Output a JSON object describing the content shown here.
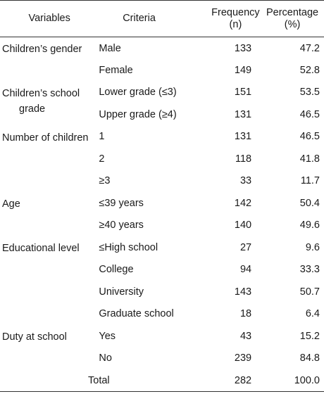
{
  "headers": {
    "variables": "Variables",
    "criteria": "Criteria",
    "frequency_line1": "Frequency",
    "frequency_line2": "(n)",
    "percentage_line1": "Percentage",
    "percentage_line2": "(%)"
  },
  "groups": [
    {
      "variable": "Children’s gender",
      "rows": [
        {
          "criteria": "Male",
          "n": "133",
          "pct": "47.2"
        },
        {
          "criteria": "Female",
          "n": "149",
          "pct": "52.8"
        }
      ]
    },
    {
      "variable_line1": "Children’s school",
      "variable_line2": "grade",
      "rows": [
        {
          "criteria": "Lower grade (≤3)",
          "n": "151",
          "pct": "53.5"
        },
        {
          "criteria": "Upper grade (≥4)",
          "n": "131",
          "pct": "46.5"
        }
      ]
    },
    {
      "variable": "Number of children",
      "rows": [
        {
          "criteria": "1",
          "n": "131",
          "pct": "46.5"
        },
        {
          "criteria": "2",
          "n": "118",
          "pct": "41.8"
        },
        {
          "criteria": "≥3",
          "n": "33",
          "pct": "11.7"
        }
      ]
    },
    {
      "variable": "Age",
      "rows": [
        {
          "criteria": "≤39 years",
          "n": "142",
          "pct": "50.4"
        },
        {
          "criteria": "≥40 years",
          "n": "140",
          "pct": "49.6"
        }
      ]
    },
    {
      "variable": "Educational level",
      "rows": [
        {
          "criteria": "≤High school",
          "n": "27",
          "pct": "9.6"
        },
        {
          "criteria": "College",
          "n": "94",
          "pct": "33.3"
        },
        {
          "criteria": "University",
          "n": "143",
          "pct": "50.7"
        },
        {
          "criteria": "Graduate school",
          "n": "18",
          "pct": "6.4"
        }
      ]
    },
    {
      "variable": "Duty at school",
      "rows": [
        {
          "criteria": "Yes",
          "n": "43",
          "pct": "15.2"
        },
        {
          "criteria": "No",
          "n": "239",
          "pct": "84.8"
        }
      ]
    }
  ],
  "total": {
    "label": "Total",
    "n": "282",
    "pct": "100.0"
  }
}
